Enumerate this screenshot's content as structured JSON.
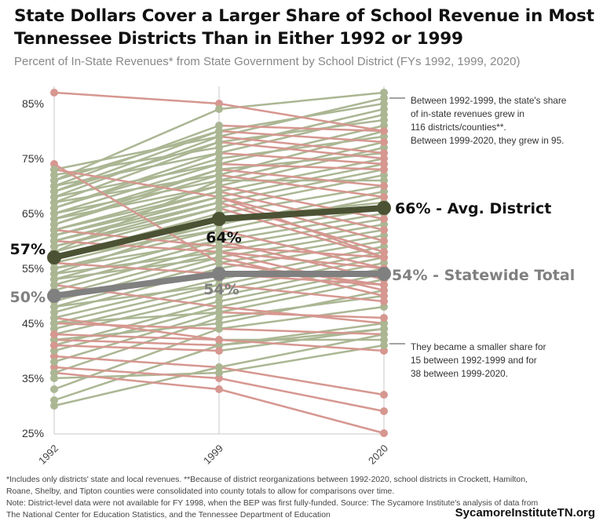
{
  "title": "State Dollars Cover a Larger Share of School Revenue in Most Tennessee Districts Than in Either 1992 or 1999",
  "subtitle": "Percent of In-State Revenues* from State Government by School District (FYs 1992, 1999, 2020)",
  "chart_data": {
    "type": "line",
    "x": [
      "1992",
      "1999",
      "2020"
    ],
    "ylim": [
      25,
      87
    ],
    "yticks": [
      "25%",
      "35%",
      "45%",
      "55%",
      "65%",
      "75%",
      "85%"
    ],
    "ytick_values": [
      25,
      35,
      45,
      55,
      65,
      75,
      85
    ],
    "colors": {
      "increase": "#abb693",
      "decrease": "#d69790",
      "avg": "#4b5234",
      "statewide": "#808080"
    },
    "highlight_series": [
      {
        "name": "Avg. District",
        "values": [
          57,
          64,
          66
        ],
        "labels": [
          "57%",
          "64%",
          "66% - Avg. District"
        ]
      },
      {
        "name": "Statewide Total",
        "values": [
          50,
          54,
          54
        ],
        "labels": [
          "50%",
          "54%",
          "54% - Statewide Total"
        ]
      }
    ],
    "districts": [
      [
        87,
        85,
        80
      ],
      [
        74,
        56,
        52
      ],
      [
        73,
        68,
        57
      ],
      [
        62,
        59,
        57
      ],
      [
        60,
        58,
        55
      ],
      [
        56,
        54,
        52
      ],
      [
        52,
        48,
        45
      ],
      [
        46,
        42,
        40
      ],
      [
        45,
        44,
        43
      ],
      [
        42,
        41,
        44
      ],
      [
        39,
        37,
        32
      ],
      [
        37,
        35,
        29
      ],
      [
        36,
        33,
        25
      ],
      [
        35,
        36,
        41
      ],
      [
        42,
        45,
        51
      ],
      [
        73,
        79,
        86
      ],
      [
        72,
        77,
        84
      ],
      [
        71,
        80,
        85
      ],
      [
        70,
        76,
        83
      ],
      [
        69,
        78,
        82
      ],
      [
        68,
        74,
        81
      ],
      [
        67,
        72,
        80
      ],
      [
        66,
        75,
        79
      ],
      [
        65,
        71,
        78
      ],
      [
        64,
        70,
        77
      ],
      [
        63,
        73,
        76
      ],
      [
        62,
        69,
        75
      ],
      [
        61,
        68,
        74
      ],
      [
        60,
        67,
        73
      ],
      [
        59,
        66,
        72
      ],
      [
        58,
        71,
        71
      ],
      [
        57,
        65,
        70
      ],
      [
        56,
        63,
        69
      ],
      [
        55,
        62,
        68
      ],
      [
        54,
        64,
        67
      ],
      [
        53,
        61,
        66
      ],
      [
        52,
        60,
        65
      ],
      [
        51,
        59,
        64
      ],
      [
        50,
        58,
        63
      ],
      [
        49,
        57,
        62
      ],
      [
        48,
        56,
        61
      ],
      [
        47,
        55,
        60
      ],
      [
        46,
        53,
        59
      ],
      [
        45,
        52,
        58
      ],
      [
        44,
        51,
        57
      ],
      [
        43,
        50,
        56
      ],
      [
        41,
        49,
        55
      ],
      [
        40,
        48,
        54
      ],
      [
        38,
        47,
        53
      ],
      [
        31,
        41,
        45
      ],
      [
        30,
        37,
        43
      ],
      [
        36,
        46,
        50
      ],
      [
        33,
        44,
        48
      ],
      [
        71,
        84,
        87
      ],
      [
        70,
        81,
        80
      ],
      [
        69,
        80,
        78
      ],
      [
        68,
        79,
        76
      ],
      [
        67,
        78,
        75
      ],
      [
        66,
        76,
        74
      ],
      [
        65,
        74,
        73
      ],
      [
        64,
        73,
        70
      ],
      [
        63,
        72,
        68
      ],
      [
        62,
        70,
        64
      ],
      [
        61,
        69,
        62
      ],
      [
        60,
        68,
        60
      ],
      [
        59,
        67,
        58
      ],
      [
        58,
        66,
        57
      ],
      [
        57,
        62,
        55
      ],
      [
        55,
        60,
        53
      ],
      [
        54,
        58,
        51
      ],
      [
        53,
        57,
        50
      ],
      [
        48,
        52,
        49
      ],
      [
        45,
        47,
        46
      ],
      [
        43,
        42,
        42
      ],
      [
        41,
        40,
        44
      ]
    ]
  },
  "annotations": {
    "top": [
      "Between 1992-1999, the state's share",
      "of in-state revenues grew in",
      "116 districts/counties**.",
      "Between 1999-2020, they grew in 95."
    ],
    "bottom": [
      "They became a smaller share for",
      "15 between 1992-1999 and for",
      "38 between 1999-2020."
    ]
  },
  "footnotes": [
    "*Includes only districts' state and local revenues. **Because of district reorganizations between 1992-2020, school districts in Crockett, Hamilton,",
    "Roane, Shelby, and Tipton counties were consolidated into county totals to allow for comparisons over time.",
    "Note: District-level data were not available for FY 1998, when the BEP was first fully-funded.  Source: The Sycamore Institute's analysis of data from",
    "The National Center for Education Statistics, and the Tennessee Department of Education"
  ],
  "brand": "SycamoreInstituteTN.org"
}
